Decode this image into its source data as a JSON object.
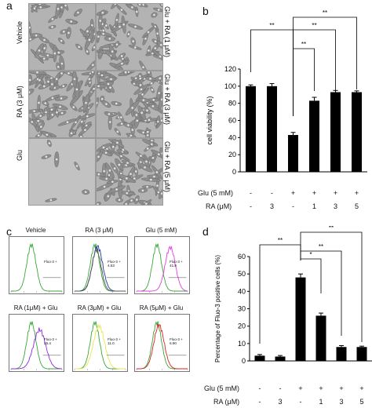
{
  "panels": {
    "a": {
      "letter": "a",
      "left_labels": [
        "Vehicle",
        "RA (3 μM)",
        "Glu"
      ],
      "right_labels": [
        "Glu + RA (1 μM)",
        "Glu + RA (3 μM)",
        "Glu + RA (5 μM)"
      ]
    },
    "b": {
      "letter": "b",
      "significance": [
        "**",
        "**",
        "**",
        "**"
      ],
      "treatment_rows": [
        {
          "label": "Glu (5 mM)",
          "values": [
            "-",
            "-",
            "+",
            "+",
            "+",
            "+"
          ]
        },
        {
          "label": "RA (μM)",
          "values": [
            "-",
            "3",
            "-",
            "1",
            "3",
            "5"
          ]
        }
      ]
    },
    "c": {
      "letter": "c",
      "histograms": [
        {
          "title": "Vehicle",
          "stat_label": "Fluo-3 +",
          "stat_value": "",
          "colors": [
            "#3aa63a"
          ]
        },
        {
          "title": "RA (3 μM)",
          "stat_label": "Fluo-3 +",
          "stat_value": "4.53",
          "colors": [
            "#3aa63a",
            "#1f3a9a",
            "#555555"
          ]
        },
        {
          "title": "Glu (5 mM)",
          "stat_label": "Fluo-3 +",
          "stat_value": "41.8",
          "colors": [
            "#3aa63a",
            "#e040e0"
          ]
        },
        {
          "title": "RA (1μM) + Glu",
          "stat_label": "Fluo-3 +",
          "stat_value": "26.4",
          "colors": [
            "#3aa63a",
            "#8a2be2"
          ]
        },
        {
          "title": "RA (3μM) + Glu",
          "stat_label": "Fluo-3 +",
          "stat_value": "11.0",
          "colors": [
            "#3aa63a",
            "#e8e84a"
          ]
        },
        {
          "title": "RA (5μM) + Glu",
          "stat_label": "Fluo-3 +",
          "stat_value": "6.90",
          "colors": [
            "#3aa63a",
            "#e02020"
          ]
        }
      ]
    },
    "d": {
      "letter": "d",
      "significance": [
        "**",
        "**",
        "*",
        "**",
        "**"
      ],
      "treatment_rows": [
        {
          "label": "Glu (5 mM)",
          "values": [
            "-",
            "-",
            "+",
            "+",
            "+",
            "+"
          ]
        },
        {
          "label": "RA (μM)",
          "values": [
            "-",
            "3",
            "-",
            "1",
            "3",
            "5"
          ]
        }
      ]
    }
  },
  "chart_data": [
    {
      "panel": "b",
      "type": "bar",
      "ylabel": "cell viability (%)",
      "ylim": [
        0,
        120
      ],
      "yticks": [
        0,
        20,
        40,
        60,
        80,
        100,
        120
      ],
      "values": [
        100,
        100,
        43,
        83,
        93,
        93
      ],
      "errors": [
        1.5,
        3,
        3,
        4,
        2,
        1.5
      ],
      "bar_color": "#000000"
    },
    {
      "panel": "d",
      "type": "bar",
      "ylabel": "Percentage of Fluo-3 positive cells (%)",
      "ylim": [
        0,
        60
      ],
      "yticks": [
        0,
        10,
        20,
        30,
        40,
        50,
        60
      ],
      "values": [
        3,
        2.5,
        48,
        26,
        8,
        8
      ],
      "errors": [
        0.7,
        0.6,
        2,
        1.5,
        0.8,
        0.5
      ],
      "bar_color": "#000000"
    }
  ]
}
